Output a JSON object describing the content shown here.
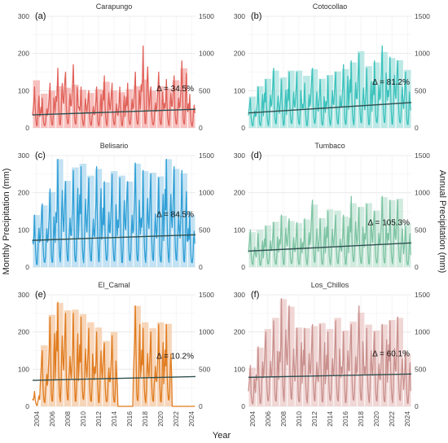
{
  "chart_data": {
    "type": "bar",
    "xlabel": "Year",
    "ylabel_left": "Monthly Precipitation (mm)",
    "ylabel_right": "Annual Precipitation (mm)",
    "x_ticks": [
      "2004",
      "2006",
      "2008",
      "2010",
      "2012",
      "2014",
      "2016",
      "2018",
      "2020",
      "2022",
      "2024"
    ],
    "ylim_monthly": [
      0,
      300
    ],
    "ylim_annual": [
      0,
      1500
    ],
    "y_ticks_monthly": [
      "0",
      "100",
      "200",
      "300"
    ],
    "y_ticks_annual": [
      "0",
      "500",
      "1000",
      "1500"
    ],
    "grid": true,
    "years": [
      2004,
      2005,
      2006,
      2007,
      2008,
      2009,
      2010,
      2011,
      2012,
      2013,
      2014,
      2015,
      2016,
      2017,
      2018,
      2019,
      2020,
      2021,
      2022,
      2023,
      2024
    ],
    "panels": [
      {
        "tag": "(a)",
        "station": "Carapungo",
        "delta": "Δ = 34.5%",
        "bar_color": "#f4a7a4",
        "line_color": "#e0625a",
        "annual": [
          640,
          460,
          500,
          560,
          540,
          580,
          510,
          470,
          520,
          620,
          500,
          480,
          520,
          560,
          650,
          500,
          560,
          530,
          640,
          800,
          260
        ],
        "trend": [
          35,
          50
        ],
        "monthly_peak": [
          110,
          80,
          120,
          160,
          150,
          170,
          110,
          100,
          110,
          140,
          120,
          110,
          120,
          150,
          220,
          110,
          150,
          130,
          140,
          180,
          90
        ]
      },
      {
        "tag": "(b)",
        "station": "Cotocollao",
        "delta": "Δ = 81.2%",
        "bar_color": "#9fe0dc",
        "line_color": "#3cc2bc",
        "annual": [
          420,
          560,
          660,
          770,
          680,
          770,
          770,
          700,
          790,
          660,
          710,
          760,
          790,
          880,
          1030,
          830,
          880,
          1020,
          940,
          910,
          780
        ],
        "trend": [
          40,
          68
        ],
        "monthly_peak": [
          80,
          110,
          130,
          160,
          130,
          150,
          150,
          120,
          160,
          130,
          140,
          150,
          170,
          180,
          200,
          160,
          180,
          220,
          190,
          180,
          150
        ]
      },
      {
        "tag": "(c)",
        "station": "Belisario",
        "delta": "Δ = 84.5%",
        "bar_color": "#a9d6ee",
        "line_color": "#2f9fd6",
        "annual": [
          700,
          830,
          1010,
          1450,
          1160,
          1340,
          1390,
          1230,
          1320,
          1140,
          1290,
          1230,
          1150,
          1390,
          1290,
          1270,
          1220,
          1450,
          1320,
          1260,
          700
        ],
        "trend": [
          72,
          87
        ],
        "monthly_peak": [
          140,
          170,
          210,
          290,
          230,
          260,
          270,
          240,
          270,
          230,
          250,
          240,
          230,
          280,
          260,
          250,
          240,
          290,
          270,
          260,
          150
        ]
      },
      {
        "tag": "(d)",
        "station": "Tumbaco",
        "delta": "Δ = 105.3%",
        "bar_color": "#bfe3d3",
        "line_color": "#7cc3a2",
        "annual": [
          470,
          500,
          560,
          610,
          690,
          620,
          590,
          640,
          840,
          660,
          780,
          760,
          680,
          860,
          810,
          860,
          760,
          940,
          900,
          920,
          590
        ],
        "trend": [
          43,
          65
        ],
        "monthly_peak": [
          100,
          90,
          110,
          120,
          140,
          130,
          120,
          130,
          180,
          130,
          150,
          140,
          140,
          190,
          160,
          170,
          150,
          190,
          180,
          180,
          110
        ]
      },
      {
        "tag": "(e)",
        "station": "El_Camal",
        "delta": "Δ = 10.2%",
        "bar_color": "#f3c59c",
        "line_color": "#e07b1e",
        "annual": [
          0,
          820,
          1230,
          1390,
          1290,
          1300,
          1240,
          1130,
          1060,
          880,
          1000,
          0,
          0,
          1350,
          1130,
          1050,
          1130,
          1110,
          0,
          0,
          0
        ],
        "trend": [
          70,
          80
        ],
        "monthly_peak": [
          40,
          150,
          240,
          280,
          250,
          250,
          240,
          210,
          200,
          170,
          190,
          0,
          0,
          270,
          210,
          200,
          220,
          220,
          0,
          0,
          0
        ]
      },
      {
        "tag": "(f)",
        "station": "Los_Chillos",
        "delta": "Δ = 60.1%",
        "bar_color": "#e9c6c4",
        "line_color": "#c9908d",
        "annual": [
          520,
          790,
          1040,
          1190,
          1440,
          1340,
          1060,
          1050,
          1080,
          1120,
          1040,
          1190,
          1020,
          1140,
          1260,
          1100,
          1020,
          1100,
          1160,
          1190,
          700
        ],
        "trend": [
          78,
          87
        ],
        "monthly_peak": [
          110,
          160,
          200,
          230,
          290,
          270,
          210,
          210,
          220,
          220,
          200,
          230,
          200,
          220,
          270,
          210,
          200,
          220,
          230,
          240,
          150
        ]
      }
    ]
  }
}
